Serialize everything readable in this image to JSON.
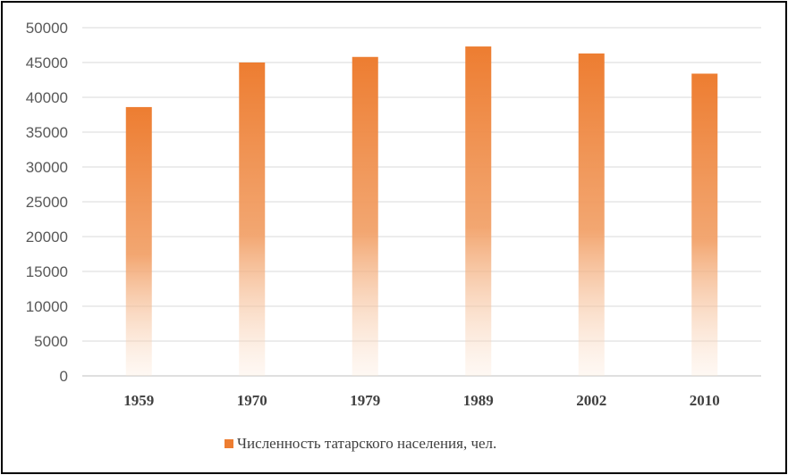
{
  "chart_data": {
    "type": "bar",
    "categories": [
      "1959",
      "1970",
      "1979",
      "1989",
      "2002",
      "2010"
    ],
    "series": [
      {
        "name": "Численность татарского населения, чел.",
        "values": [
          38600,
          45000,
          45800,
          47300,
          46300,
          43400
        ],
        "color": "#ED7D31"
      }
    ],
    "ylim": [
      0,
      50000
    ],
    "yticks": [
      0,
      5000,
      10000,
      15000,
      20000,
      25000,
      30000,
      35000,
      40000,
      45000,
      50000
    ],
    "grid": true,
    "legend": "bottom"
  }
}
